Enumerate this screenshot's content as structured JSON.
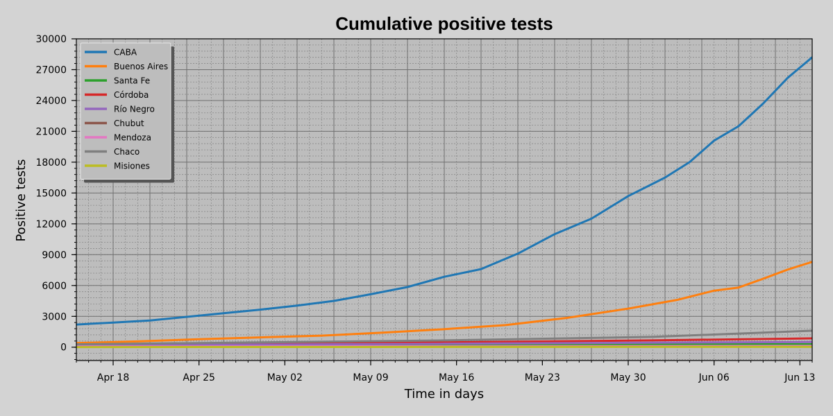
{
  "chart_data": {
    "type": "line",
    "title": "Cumulative positive tests",
    "xlabel": "Time in days",
    "ylabel": "Positive tests",
    "grid": true,
    "legend_position": "top-left",
    "x_start": "2020-04-15",
    "x_end": "2020-06-14",
    "xlim": [
      "2020-04-15",
      "2020-06-14"
    ],
    "ylim": [
      -1300,
      30000
    ],
    "x_ticks": [
      {
        "date": "2020-04-18",
        "label": "Apr 18"
      },
      {
        "date": "2020-04-25",
        "label": "Apr 25"
      },
      {
        "date": "2020-05-02",
        "label": "May 02"
      },
      {
        "date": "2020-05-09",
        "label": "May 09"
      },
      {
        "date": "2020-05-16",
        "label": "May 16"
      },
      {
        "date": "2020-05-23",
        "label": "May 23"
      },
      {
        "date": "2020-05-30",
        "label": "May 30"
      },
      {
        "date": "2020-06-06",
        "label": "Jun 06"
      },
      {
        "date": "2020-06-13",
        "label": "Jun 13"
      }
    ],
    "y_ticks": [
      0,
      3000,
      6000,
      9000,
      12000,
      15000,
      18000,
      21000,
      24000,
      27000,
      30000
    ],
    "series": [
      {
        "name": "CABA",
        "color": "#1f77b4",
        "points": [
          [
            "2020-04-15",
            2200
          ],
          [
            "2020-04-18",
            2400
          ],
          [
            "2020-04-21",
            2600
          ],
          [
            "2020-04-24",
            2950
          ],
          [
            "2020-04-27",
            3300
          ],
          [
            "2020-04-30",
            3650
          ],
          [
            "2020-05-03",
            4050
          ],
          [
            "2020-05-06",
            4500
          ],
          [
            "2020-05-09",
            5150
          ],
          [
            "2020-05-12",
            5850
          ],
          [
            "2020-05-15",
            6850
          ],
          [
            "2020-05-18",
            7600
          ],
          [
            "2020-05-21",
            9100
          ],
          [
            "2020-05-24",
            11000
          ],
          [
            "2020-05-27",
            12500
          ],
          [
            "2020-05-30",
            14700
          ],
          [
            "2020-06-02",
            16500
          ],
          [
            "2020-06-04",
            18000
          ],
          [
            "2020-06-06",
            20100
          ],
          [
            "2020-06-08",
            21500
          ],
          [
            "2020-06-10",
            23700
          ],
          [
            "2020-06-12",
            26200
          ],
          [
            "2020-06-14",
            28200
          ]
        ]
      },
      {
        "name": "Buenos Aires",
        "color": "#ff7f0e",
        "points": [
          [
            "2020-04-15",
            400
          ],
          [
            "2020-04-20",
            560
          ],
          [
            "2020-04-25",
            780
          ],
          [
            "2020-04-30",
            950
          ],
          [
            "2020-05-05",
            1120
          ],
          [
            "2020-05-10",
            1420
          ],
          [
            "2020-05-15",
            1750
          ],
          [
            "2020-05-20",
            2150
          ],
          [
            "2020-05-25",
            2850
          ],
          [
            "2020-05-30",
            3750
          ],
          [
            "2020-06-03",
            4600
          ],
          [
            "2020-06-06",
            5500
          ],
          [
            "2020-06-08",
            5800
          ],
          [
            "2020-06-10",
            6650
          ],
          [
            "2020-06-12",
            7550
          ],
          [
            "2020-06-14",
            8300
          ]
        ]
      },
      {
        "name": "Santa Fe",
        "color": "#2ca02c",
        "points": [
          [
            "2020-04-15",
            200
          ],
          [
            "2020-05-01",
            240
          ],
          [
            "2020-05-15",
            260
          ],
          [
            "2020-06-01",
            270
          ],
          [
            "2020-06-14",
            290
          ]
        ]
      },
      {
        "name": "Córdoba",
        "color": "#d62728",
        "points": [
          [
            "2020-04-15",
            250
          ],
          [
            "2020-05-01",
            370
          ],
          [
            "2020-05-15",
            470
          ],
          [
            "2020-06-01",
            660
          ],
          [
            "2020-06-14",
            860
          ]
        ]
      },
      {
        "name": "Río Negro",
        "color": "#9467bd",
        "points": [
          [
            "2020-04-15",
            150
          ],
          [
            "2020-05-01",
            250
          ],
          [
            "2020-05-15",
            330
          ],
          [
            "2020-06-01",
            440
          ],
          [
            "2020-06-14",
            500
          ]
        ]
      },
      {
        "name": "Chubut",
        "color": "#8c564b",
        "points": [
          [
            "2020-04-15",
            20
          ],
          [
            "2020-05-15",
            60
          ],
          [
            "2020-06-14",
            100
          ]
        ]
      },
      {
        "name": "Mendoza",
        "color": "#e377c2",
        "points": [
          [
            "2020-04-15",
            60
          ],
          [
            "2020-05-15",
            90
          ],
          [
            "2020-06-14",
            120
          ]
        ]
      },
      {
        "name": "Chaco",
        "color": "#7f7f7f",
        "points": [
          [
            "2020-04-15",
            280
          ],
          [
            "2020-05-01",
            480
          ],
          [
            "2020-05-15",
            660
          ],
          [
            "2020-06-01",
            1000
          ],
          [
            "2020-06-14",
            1600
          ]
        ]
      },
      {
        "name": "Misiones",
        "color": "#bcbd22",
        "points": [
          [
            "2020-04-15",
            10
          ],
          [
            "2020-05-15",
            20
          ],
          [
            "2020-06-14",
            35
          ]
        ]
      }
    ]
  },
  "colors": {
    "figure_background": "#d3d3d3",
    "plot_background": "#bdbdbd",
    "grid_major": "#707070",
    "grid_minor": "#8a8a8a",
    "legend_background": "#bdbdbd"
  }
}
